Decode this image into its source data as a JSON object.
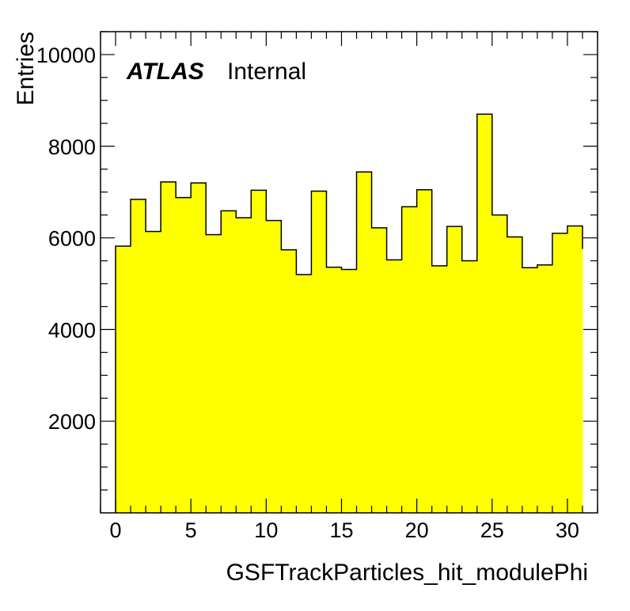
{
  "chart_data": {
    "type": "histogram",
    "title": "",
    "xlabel": "GSFTrackParticles_hit_modulePhi",
    "ylabel": "Entries",
    "xlim": [
      -1,
      32
    ],
    "ylim": [
      0,
      10500
    ],
    "x_ticks": [
      0,
      5,
      10,
      15,
      20,
      25,
      30
    ],
    "y_ticks": [
      2000,
      4000,
      6000,
      8000,
      10000
    ],
    "bin_edges": [
      0,
      1,
      2,
      3,
      4,
      5,
      6,
      7,
      8,
      9,
      10,
      11,
      12,
      13,
      14,
      15,
      16,
      17,
      18,
      19,
      20,
      21,
      22,
      23,
      24,
      25,
      26,
      27,
      28,
      29,
      30,
      31
    ],
    "values": [
      5820,
      6840,
      6140,
      7220,
      6880,
      7200,
      6070,
      6590,
      6440,
      7040,
      6380,
      5740,
      5200,
      7020,
      5360,
      5310,
      7440,
      6220,
      5520,
      6680,
      7050,
      5390,
      6250,
      5500,
      8700,
      6500,
      6020,
      5350,
      5410,
      6100,
      6260,
      5760
    ],
    "fill_color": "#ffff00",
    "line_color": "#000000",
    "grid": false,
    "legend": "none"
  },
  "label": {
    "experiment": "ATLAS",
    "status": "Internal"
  }
}
